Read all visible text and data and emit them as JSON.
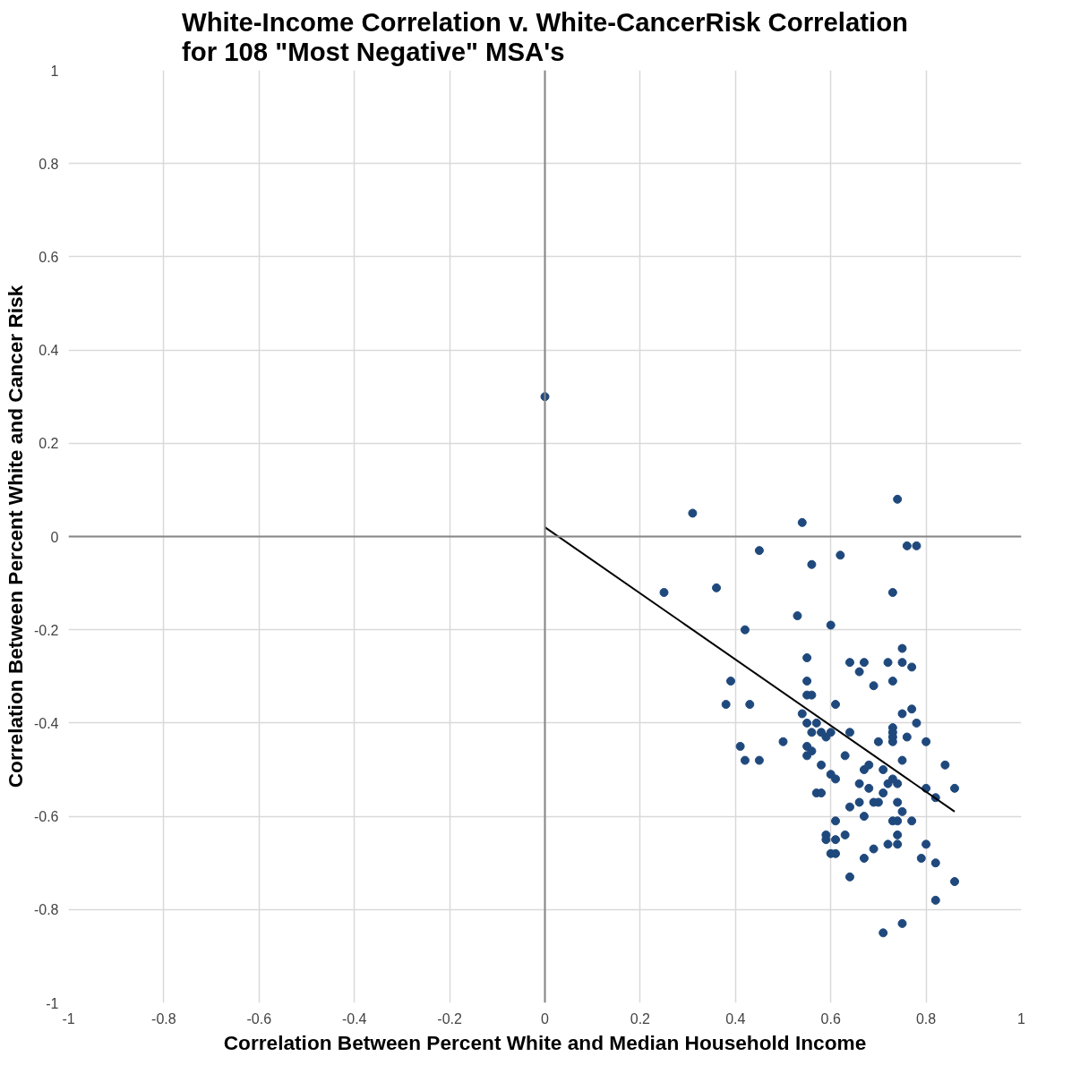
{
  "chart_data": {
    "type": "scatter",
    "title": "White-Income Correlation v. White-CancerRisk Correlation\nfor 108 \"Most Negative\" MSA's",
    "xlabel": "Correlation Between Percent White and Median Household Income",
    "ylabel": "Correlation Between Percent White and Cancer Risk",
    "xlim": [
      -1,
      1
    ],
    "ylim": [
      -1,
      1
    ],
    "xticks": [
      -1,
      -0.8,
      -0.6,
      -0.4,
      -0.2,
      0,
      0.2,
      0.4,
      0.6,
      0.8,
      1
    ],
    "yticks": [
      -1,
      -0.8,
      -0.6,
      -0.4,
      -0.2,
      0,
      0.2,
      0.4,
      0.6,
      0.8,
      1
    ],
    "grid": true,
    "marker": "circle",
    "series": [
      {
        "color": "#1f497d",
        "x": [
          0.0,
          0.31,
          0.25,
          0.36,
          0.45,
          0.54,
          0.56,
          0.62,
          0.74,
          0.76,
          0.78,
          0.73,
          0.53,
          0.42,
          0.6,
          0.55,
          0.39,
          0.38,
          0.43,
          0.41,
          0.42,
          0.45,
          0.5,
          0.55,
          0.55,
          0.56,
          0.54,
          0.55,
          0.57,
          0.56,
          0.58,
          0.59,
          0.6,
          0.55,
          0.55,
          0.56,
          0.58,
          0.61,
          0.64,
          0.67,
          0.66,
          0.69,
          0.64,
          0.63,
          0.6,
          0.61,
          0.57,
          0.58,
          0.66,
          0.67,
          0.68,
          0.7,
          0.72,
          0.75,
          0.75,
          0.73,
          0.77,
          0.77,
          0.75,
          0.73,
          0.73,
          0.73,
          0.73,
          0.76,
          0.78,
          0.8,
          0.75,
          0.84,
          0.86,
          0.8,
          0.82,
          0.71,
          0.72,
          0.74,
          0.73,
          0.71,
          0.68,
          0.7,
          0.69,
          0.66,
          0.64,
          0.74,
          0.75,
          0.67,
          0.61,
          0.73,
          0.74,
          0.77,
          0.59,
          0.59,
          0.63,
          0.61,
          0.69,
          0.72,
          0.74,
          0.74,
          0.8,
          0.67,
          0.6,
          0.61,
          0.79,
          0.82,
          0.64,
          0.86,
          0.82,
          0.75,
          0.71
        ],
        "values": [
          0.3,
          0.05,
          -0.12,
          -0.11,
          -0.03,
          0.03,
          -0.06,
          -0.04,
          0.08,
          -0.02,
          -0.02,
          -0.12,
          -0.17,
          -0.2,
          -0.19,
          -0.26,
          -0.31,
          -0.36,
          -0.36,
          -0.45,
          -0.48,
          -0.48,
          -0.44,
          -0.31,
          -0.34,
          -0.34,
          -0.38,
          -0.4,
          -0.4,
          -0.42,
          -0.42,
          -0.43,
          -0.42,
          -0.45,
          -0.47,
          -0.46,
          -0.49,
          -0.36,
          -0.27,
          -0.27,
          -0.29,
          -0.32,
          -0.42,
          -0.47,
          -0.51,
          -0.52,
          -0.55,
          -0.55,
          -0.53,
          -0.5,
          -0.49,
          -0.44,
          -0.27,
          -0.27,
          -0.24,
          -0.31,
          -0.28,
          -0.37,
          -0.38,
          -0.41,
          -0.42,
          -0.44,
          -0.43,
          -0.43,
          -0.4,
          -0.44,
          -0.48,
          -0.49,
          -0.54,
          -0.54,
          -0.56,
          -0.5,
          -0.53,
          -0.53,
          -0.52,
          -0.55,
          -0.54,
          -0.57,
          -0.57,
          -0.57,
          -0.58,
          -0.57,
          -0.59,
          -0.6,
          -0.61,
          -0.61,
          -0.61,
          -0.61,
          -0.64,
          -0.65,
          -0.64,
          -0.65,
          -0.67,
          -0.66,
          -0.66,
          -0.64,
          -0.66,
          -0.69,
          -0.68,
          -0.68,
          -0.69,
          -0.7,
          -0.73,
          -0.74,
          -0.78,
          -0.83,
          -0.85
        ]
      },
      {
        "type": "line",
        "color": "#000000",
        "marker": "none",
        "x": [
          0.0,
          0.86
        ],
        "values": [
          0.02,
          -0.59
        ]
      }
    ]
  }
}
